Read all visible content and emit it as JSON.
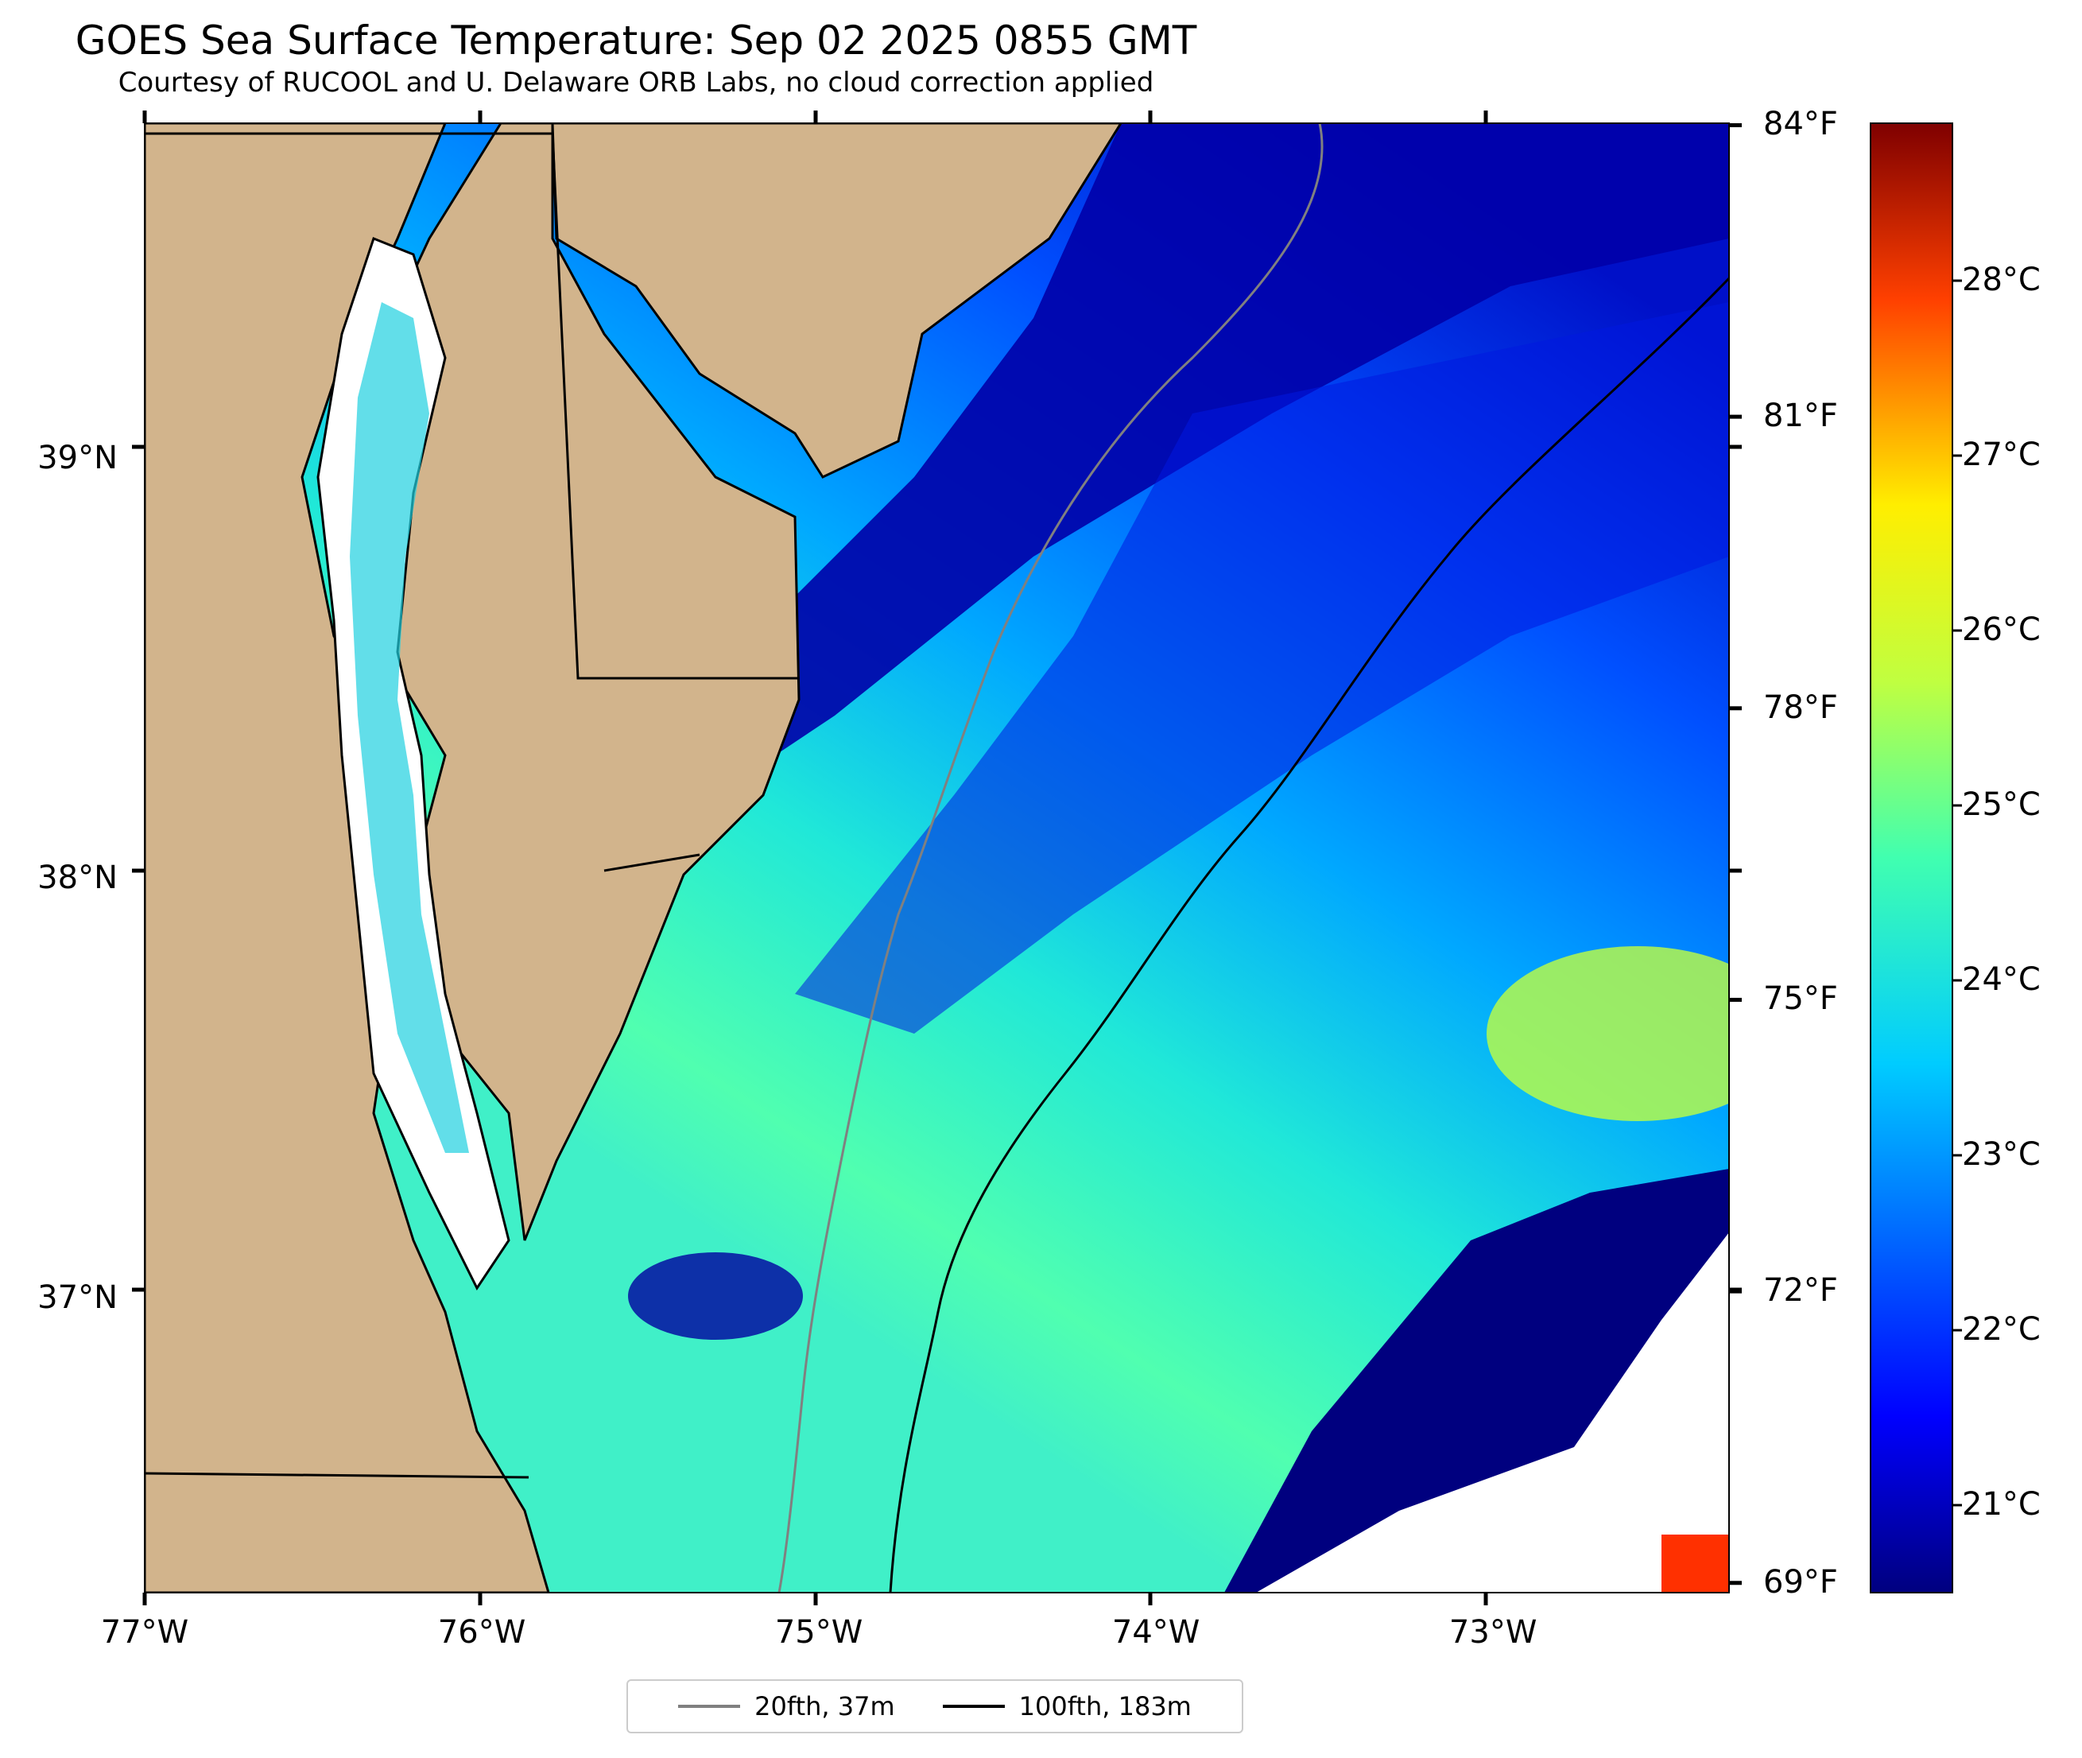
{
  "title": "GOES Sea Surface Temperature: Sep 02 2025 0855 GMT",
  "subtitle": "Courtesy of RUCOOL and U. Delaware ORB Labs, no cloud correction applied",
  "map": {
    "lon_range": [
      -77,
      -72.3
    ],
    "lat_range": [
      36.3,
      39.8
    ],
    "lat_ticks": [
      {
        "value": 39,
        "label": "39°N"
      },
      {
        "value": 38,
        "label": "38°N"
      },
      {
        "value": 37,
        "label": "37°N"
      }
    ],
    "lon_ticks": [
      {
        "value": -77,
        "label": "77°W"
      },
      {
        "value": -76,
        "label": "76°W"
      },
      {
        "value": -75,
        "label": "75°W"
      },
      {
        "value": -74,
        "label": "74°W"
      },
      {
        "value": -73,
        "label": "73°W"
      }
    ],
    "land_color": "#d2b48c",
    "ocean_colormap": "jet",
    "isobaths": [
      {
        "label": "20fth, 37m",
        "color": "#808080"
      },
      {
        "label": "100fth, 183m",
        "color": "#000000"
      }
    ]
  },
  "colorbar": {
    "colormap": "jet",
    "range_c": [
      20.5,
      28.9
    ],
    "celsius_ticks": [
      {
        "value": 21,
        "label": "21°C"
      },
      {
        "value": 22,
        "label": "22°C"
      },
      {
        "value": 23,
        "label": "23°C"
      },
      {
        "value": 24,
        "label": "24°C"
      },
      {
        "value": 25,
        "label": "25°C"
      },
      {
        "value": 26,
        "label": "26°C"
      },
      {
        "value": 27,
        "label": "27°C"
      },
      {
        "value": 28,
        "label": "28°C"
      }
    ],
    "fahrenheit_ticks": [
      {
        "value": 69,
        "label": "69°F"
      },
      {
        "value": 72,
        "label": "72°F"
      },
      {
        "value": 75,
        "label": "75°F"
      },
      {
        "value": 78,
        "label": "78°F"
      },
      {
        "value": 81,
        "label": "81°F"
      },
      {
        "value": 84,
        "label": "84°F"
      }
    ]
  },
  "legend": [
    {
      "label": "20fth, 37m",
      "color": "#808080"
    },
    {
      "label": "100fth, 183m",
      "color": "#000000"
    }
  ]
}
